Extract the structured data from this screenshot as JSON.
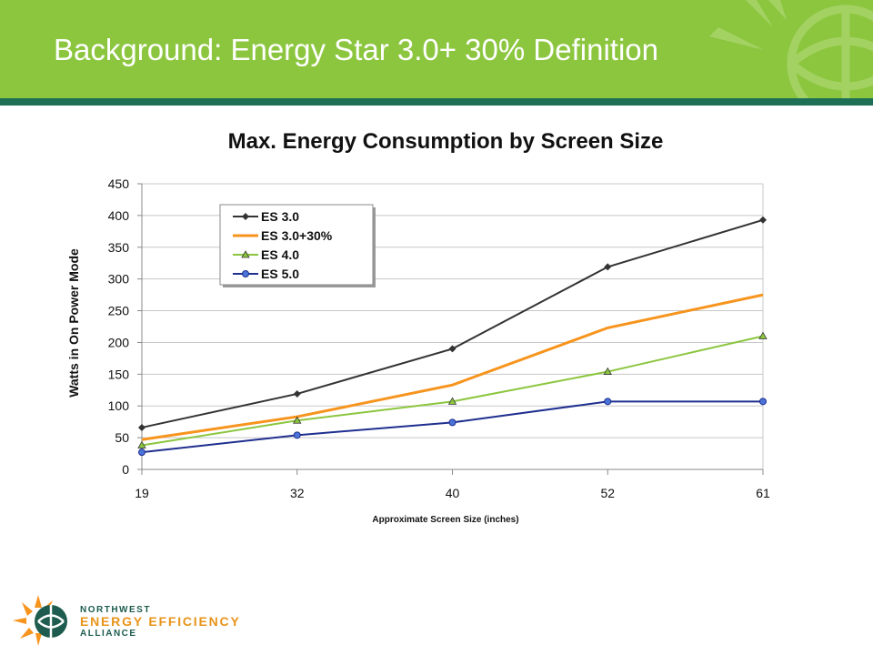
{
  "slide": {
    "title": "Background: Energy Star 3.0+ 30% Definition"
  },
  "colors": {
    "header_green": "#8cc63f",
    "header_rule": "#1d6f56"
  },
  "logo": {
    "line1": "NORTHWEST",
    "line2": "ENERGY EFFICIENCY",
    "line3": "ALLIANCE"
  },
  "chart_data": {
    "type": "line",
    "title": "Max. Energy Consumption by Screen Size",
    "xlabel": "Approximate Screen Size (inches)",
    "ylabel": "Watts in On Power Mode",
    "categories": [
      "19",
      "32",
      "40",
      "52",
      "61"
    ],
    "ylim": [
      0,
      450
    ],
    "yticks": [
      0,
      50,
      100,
      150,
      200,
      250,
      300,
      350,
      400,
      450
    ],
    "grid": true,
    "legend_position": "top-left",
    "series": [
      {
        "name": "ES 3.0",
        "values": [
          66,
          119,
          190,
          319,
          393
        ],
        "color": "#333333",
        "marker": "diamond"
      },
      {
        "name": "ES 3.0+30%",
        "values": [
          47,
          83,
          133,
          223,
          275
        ],
        "color": "#f7941d",
        "marker": "none"
      },
      {
        "name": "ES 4.0",
        "values": [
          38,
          77,
          107,
          154,
          210
        ],
        "color": "#8cc63f",
        "marker": "triangle"
      },
      {
        "name": "ES 5.0",
        "values": [
          27,
          54,
          74,
          107,
          107
        ],
        "color": "#1f2f8f",
        "marker": "circle"
      }
    ]
  }
}
